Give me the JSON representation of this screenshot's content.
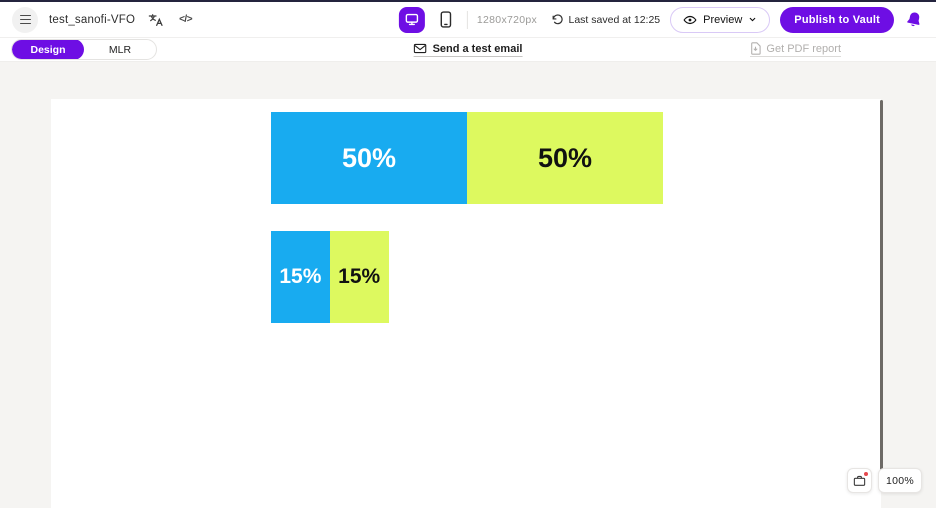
{
  "colors": {
    "accent_purple": "#6e0ee4",
    "bar_blue": "#18abf0",
    "bar_green": "#ddf95f",
    "notification_red": "#e5484d",
    "workspace_bg": "#f5f4f2"
  },
  "topbar": {
    "title": "test_sanofi-VFO",
    "code_glyph": "</>",
    "viewport_size": "1280x720px",
    "last_saved": "Last saved at 12:25",
    "preview": "Preview",
    "publish": "Publish to Vault"
  },
  "tabs": [
    {
      "label": "Design",
      "active": true
    },
    {
      "label": "MLR",
      "active": false
    }
  ],
  "actions": {
    "send_test_email": "Send a test email",
    "get_pdf_report": "Get PDF report"
  },
  "canvas": {
    "zoom_level": "100%"
  },
  "icons": [
    "menu-icon",
    "translate-icon",
    "code-icon",
    "desktop-icon",
    "mobile-icon",
    "history-icon",
    "eye-icon",
    "chevron-down-icon",
    "bell-icon",
    "envelope-icon",
    "pdf-icon",
    "clipboard-icon"
  ],
  "chart_data": {
    "type": "bar",
    "orientation": "horizontal-stacked",
    "full_scale_pct": 100,
    "bars": [
      {
        "segments": [
          {
            "value": 50,
            "label": "50%",
            "color": "#18abf0",
            "text_color": "#ffffff"
          },
          {
            "value": 50,
            "label": "50%",
            "color": "#ddf95f",
            "text_color": "#111111"
          }
        ]
      },
      {
        "segments": [
          {
            "value": 15,
            "label": "15%",
            "color": "#18abf0",
            "text_color": "#ffffff"
          },
          {
            "value": 15,
            "label": "15%",
            "color": "#ddf95f",
            "text_color": "#111111"
          }
        ]
      }
    ]
  }
}
